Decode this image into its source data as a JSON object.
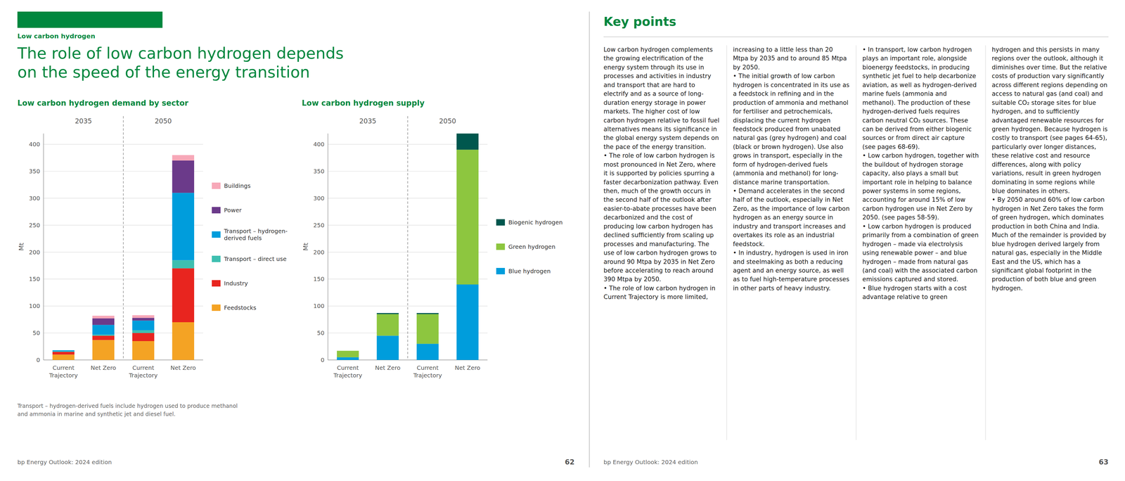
{
  "color": "#00873E",
  "section_label": "Low carbon hydrogen",
  "title": "The role of low carbon hydrogen depends\non the speed of the energy transition",
  "chart_data": [
    {
      "type": "bar",
      "stacked": true,
      "title": "Low carbon hydrogen demand by sector",
      "categories": [
        "Current Trajectory",
        "Net Zero",
        "Current Trajectory",
        "Net Zero"
      ],
      "annotations": [
        "2035",
        "2050"
      ],
      "ylabel": "Mt",
      "ylim": [
        0,
        420
      ],
      "yticks": [
        0,
        50,
        100,
        150,
        200,
        250,
        300,
        350,
        400
      ],
      "grid": true,
      "legend": "right",
      "series": [
        {
          "name": "Feedstocks",
          "color": "#F4A324",
          "values": [
            10,
            37,
            35,
            70
          ]
        },
        {
          "name": "Industry",
          "color": "#E8251F",
          "values": [
            5,
            8,
            15,
            100
          ]
        },
        {
          "name": "Transport – direct use",
          "color": "#3EBFB0",
          "values": [
            1,
            2,
            5,
            15
          ]
        },
        {
          "name": "Transport – hydrogen-derived fuels",
          "color": "#009DDC",
          "values": [
            2,
            18,
            18,
            125
          ]
        },
        {
          "name": "Power",
          "color": "#6B3A8A",
          "values": [
            0,
            12,
            5,
            60
          ]
        },
        {
          "name": "Buildings",
          "color": "#F7A8B8",
          "values": [
            0,
            5,
            5,
            10
          ]
        }
      ]
    },
    {
      "type": "bar",
      "stacked": true,
      "title": "Low carbon hydrogen supply",
      "categories": [
        "Current Trajectory",
        "Net Zero",
        "Current Trajectory",
        "Net Zero"
      ],
      "annotations": [
        "2035",
        "2050"
      ],
      "ylabel": "Mt",
      "ylim": [
        0,
        420
      ],
      "yticks": [
        0,
        50,
        100,
        150,
        200,
        250,
        300,
        350,
        400
      ],
      "grid": true,
      "legend": "right",
      "series": [
        {
          "name": "Blue hydrogen",
          "color": "#009DDC",
          "values": [
            5,
            45,
            30,
            140
          ]
        },
        {
          "name": "Green hydrogen",
          "color": "#8DC63F",
          "values": [
            12,
            40,
            55,
            250
          ]
        },
        {
          "name": "Biogenic hydrogen",
          "color": "#00574E",
          "values": [
            0,
            2,
            2,
            30
          ]
        }
      ]
    }
  ],
  "footnote": "Transport – hydrogen-derived fuels include hydrogen used to produce methanol\nand ammonia in marine and synthetic jet and diesel fuel.",
  "key_points": {
    "title": "Key points",
    "columns": [
      "Low carbon hydrogen complements the growing electrification of the energy system through its use in processes and activities in industry and transport that are hard to electrify and as a source of long-duration energy storage in power markets. The higher cost of low carbon hydrogen relative to fossil fuel alternatives means its significance in the global energy system depends on the pace of the energy transition.\n• The role of low carbon hydrogen is most pronounced in Net Zero, where it is supported by policies spurring a faster decarbonization pathway. Even then, much of the growth occurs in the second half of the outlook after easier-to-abate processes have been decarbonized and the cost of producing low carbon hydrogen has declined sufficiently from scaling up processes and manufacturing. The use of low carbon hydrogen grows to around 90 Mtpa by 2035 in Net Zero before accelerating to reach around 390 Mtpa by 2050.\n• The role of low carbon hydrogen in Current Trajectory is more limited,",
      "increasing to a little less than 20 Mtpa by 2035 and to around 85 Mtpa by 2050.\n• The initial growth of low carbon hydrogen is concentrated in its use as a feedstock in refining and in the production of ammonia and methanol for fertiliser and petrochemicals, displacing the current hydrogen feedstock produced from unabated natural gas (grey hydrogen) and coal (black or brown hydrogen). Use also grows in transport, especially in the form of hydrogen-derived fuels (ammonia and methanol) for long-distance marine transportation.\n• Demand accelerates in the second half of the outlook, especially in Net Zero, as the importance of low carbon hydrogen as an energy source in industry and transport increases and overtakes its role as an industrial feedstock.\n• In industry, hydrogen is used in iron and steelmaking as both a reducing agent and an energy source, as well as to fuel high-temperature processes in other parts of heavy industry.",
      "• In transport, low carbon hydrogen plays an important role, alongside bioenergy feedstocks, in producing synthetic jet fuel to help decarbonize aviation, as well as hydrogen-derived marine fuels (ammonia and methanol). The production of these hydrogen-derived fuels requires carbon neutral CO₂ sources. These can be derived from either biogenic sources or from direct air capture (see pages 68-69).\n• Low carbon hydrogen, together with the buildout of hydrogen storage capacity, also plays a small but important role in helping to balance power systems in some regions, accounting for around 15% of low carbon hydrogen use in Net Zero by 2050. (see pages 58-59).\n• Low carbon hydrogen is produced primarily from a combination of green hydrogen – made via electrolysis using renewable power – and blue hydrogen – made from natural gas (and coal) with the associated carbon emissions captured and stored.\n• Blue hydrogen starts with a cost advantage relative to green",
      "hydrogen and this persists in many regions over the outlook, although it diminishes over time. But the relative costs of production vary significantly across different regions depending on access to natural gas (and coal) and suitable CO₂ storage sites for blue hydrogen, and to sufficiently advantaged renewable resources for green hydrogen. Because hydrogen is costly to transport (see pages 64-65), particularly over longer distances, these relative cost and resource differences, along with policy variations, result in green hydrogen dominating in some regions while blue dominates in others.\n• By 2050 around 60% of low carbon hydrogen in Net Zero takes the form of green hydrogen, which dominates production in both China and India. Much of the remainder is provided by blue hydrogen derived largely from natural gas, especially in the Middle East and the US, which has a significant global footprint in the production of both blue and green hydrogen."
    ]
  },
  "page_numbers": [
    {
      "source": "bp Energy Outlook: 2024 edition",
      "page": "62"
    },
    {
      "source": "bp Energy Outlook: 2024 edition",
      "page": "63"
    }
  ]
}
